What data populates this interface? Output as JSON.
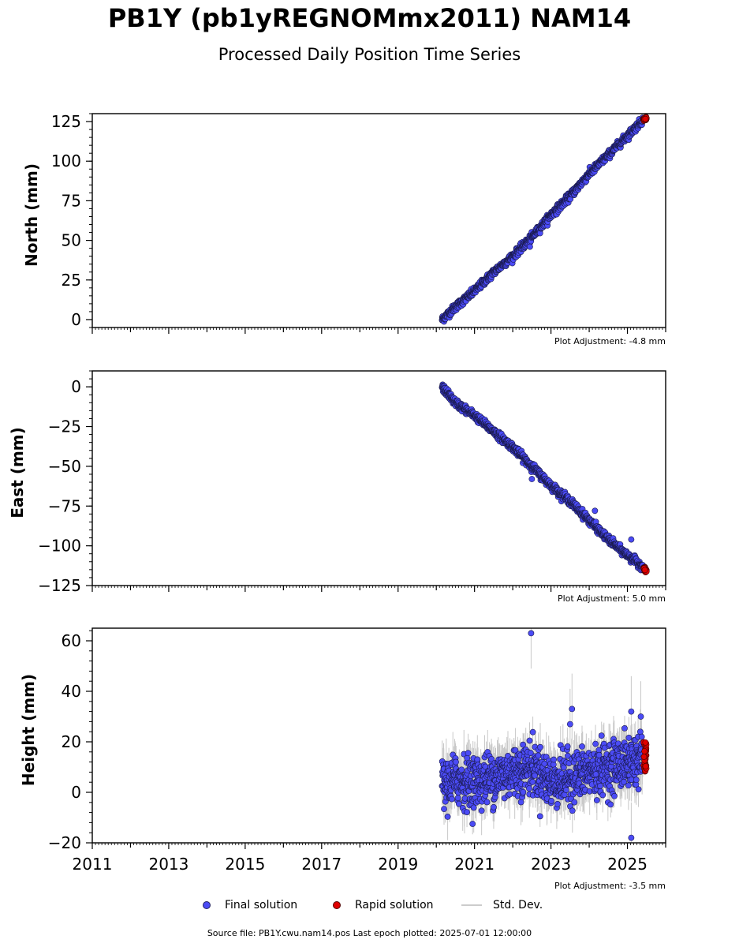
{
  "header": {
    "title": "PB1Y (pb1yREGNOMmx2011) NAM14",
    "subtitle": "Processed Daily Position Time Series"
  },
  "footer": {
    "source": "Source file: PB1Y.cwu.nam14.pos  Last epoch plotted: 2025-07-01 12:00:00"
  },
  "legend": {
    "final": "Final solution",
    "rapid": "Rapid solution",
    "std": "Std. Dev."
  },
  "colors": {
    "final_fill": "#4b4bf5",
    "final_edge": "#1a1a4d",
    "rapid_fill": "#e00000",
    "std_dev": "#c8c8c8"
  },
  "chart_data": [
    {
      "type": "scatter",
      "ylabel": "North (mm)",
      "xlim": [
        2011,
        2026
      ],
      "ylim": [
        -5,
        130
      ],
      "yticks": [
        0,
        25,
        50,
        75,
        100,
        125
      ],
      "adjustment": "Plot Adjustment: -4.8 mm",
      "series": [
        {
          "name": "Final solution",
          "x": [
            2020.15,
            2020.5,
            2021.0,
            2021.5,
            2022.0,
            2022.5,
            2023.0,
            2023.5,
            2024.0,
            2024.5,
            2025.0,
            2025.4
          ],
          "y": [
            0,
            8,
            18,
            30,
            40,
            52,
            66,
            78,
            92,
            104,
            116,
            126
          ]
        },
        {
          "name": "Rapid solution",
          "x": [
            2025.42,
            2025.5
          ],
          "y": [
            126,
            127
          ]
        }
      ],
      "outliers": [
        {
          "x": 2022.45,
          "y": 46
        }
      ]
    },
    {
      "type": "scatter",
      "ylabel": "East (mm)",
      "xlim": [
        2011,
        2026
      ],
      "ylim": [
        -125,
        10
      ],
      "yticks": [
        0,
        -25,
        -50,
        -75,
        -100,
        -125
      ],
      "adjustment": "Plot Adjustment: 5.0 mm",
      "series": [
        {
          "name": "Final solution",
          "x": [
            2020.15,
            2020.5,
            2021.0,
            2021.5,
            2022.0,
            2022.5,
            2023.0,
            2023.5,
            2024.0,
            2024.5,
            2025.0,
            2025.4
          ],
          "y": [
            0,
            -10,
            -18,
            -28,
            -38,
            -50,
            -62,
            -72,
            -84,
            -96,
            -106,
            -113
          ]
        },
        {
          "name": "Rapid solution",
          "x": [
            2025.42,
            2025.5
          ],
          "y": [
            -114,
            -116
          ]
        }
      ],
      "outliers": [
        {
          "x": 2022.5,
          "y": -58
        },
        {
          "x": 2025.1,
          "y": -96
        },
        {
          "x": 2024.15,
          "y": -78
        }
      ]
    },
    {
      "type": "scatter",
      "ylabel": "Height (mm)",
      "xlabel_ticks": [
        "2011",
        "2013",
        "2015",
        "2017",
        "2019",
        "2021",
        "2023",
        "2025"
      ],
      "xlim": [
        2011,
        2026
      ],
      "ylim": [
        -20,
        65
      ],
      "yticks": [
        -20,
        0,
        20,
        40,
        60
      ],
      "adjustment": "Plot Adjustment: -3.5 mm",
      "series": [
        {
          "name": "Final solution",
          "x": [
            2020.15,
            2020.5,
            2021.0,
            2021.5,
            2022.0,
            2022.5,
            2023.0,
            2023.5,
            2024.0,
            2024.5,
            2025.0,
            2025.4
          ],
          "y": [
            2,
            5,
            4,
            6,
            8,
            10,
            4,
            6,
            8,
            10,
            12,
            14
          ],
          "scatter_sd": 5
        },
        {
          "name": "Rapid solution",
          "x": [
            2025.42,
            2025.5
          ],
          "y": [
            8,
            20
          ],
          "scatter_sd": 4
        }
      ],
      "outliers": [
        {
          "x": 2022.48,
          "y": 63
        },
        {
          "x": 2023.55,
          "y": 33
        },
        {
          "x": 2025.1,
          "y": -18
        },
        {
          "x": 2025.1,
          "y": 32
        },
        {
          "x": 2025.35,
          "y": 30
        },
        {
          "x": 2023.5,
          "y": 27
        }
      ]
    }
  ]
}
